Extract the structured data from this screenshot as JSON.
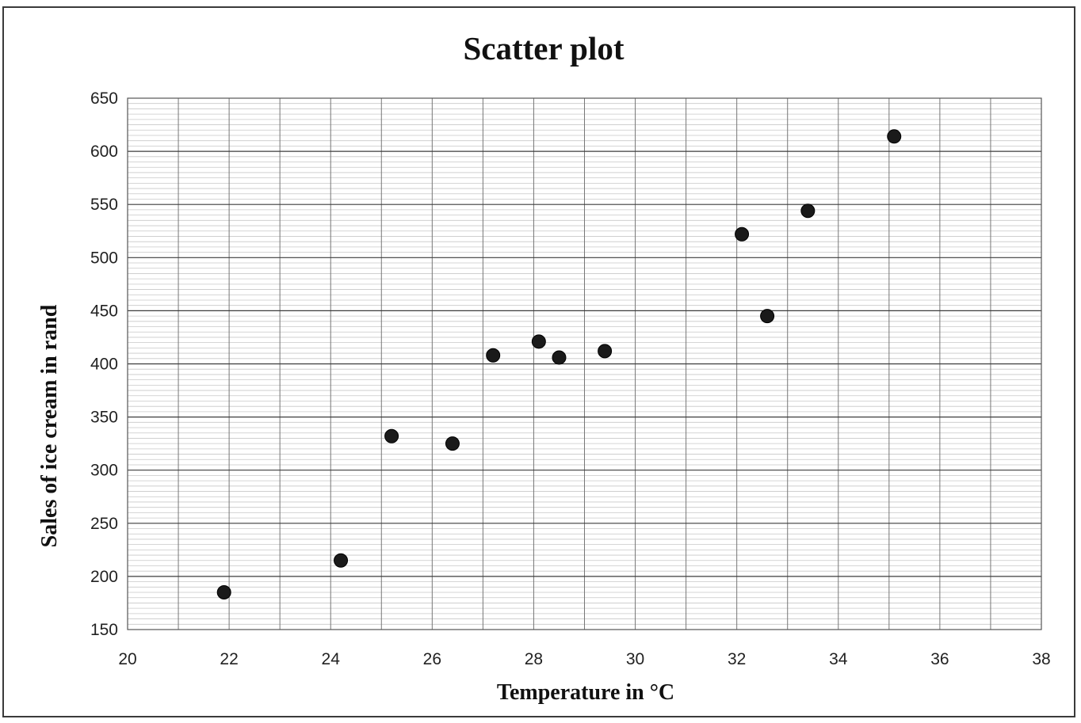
{
  "chart_data": {
    "type": "scatter",
    "title": "Scatter plot",
    "xlabel": "Temperature in  °C",
    "ylabel": "Sales of ice cream in rand",
    "xlim": [
      20,
      38
    ],
    "ylim": [
      150,
      650
    ],
    "x_ticks": [
      "20",
      "22",
      "24",
      "26",
      "28",
      "30",
      "32",
      "34",
      "36",
      "38"
    ],
    "y_ticks": [
      "150",
      "200",
      "250",
      "300",
      "350",
      "400",
      "450",
      "500",
      "550",
      "600",
      "650"
    ],
    "grid": true,
    "legend": "none",
    "marker_color": "#1a1a1a",
    "points": [
      {
        "x": 21.9,
        "y": 185
      },
      {
        "x": 24.2,
        "y": 215
      },
      {
        "x": 25.2,
        "y": 332
      },
      {
        "x": 26.4,
        "y": 325
      },
      {
        "x": 27.2,
        "y": 408
      },
      {
        "x": 28.1,
        "y": 421
      },
      {
        "x": 28.5,
        "y": 406
      },
      {
        "x": 29.4,
        "y": 412
      },
      {
        "x": 32.1,
        "y": 522
      },
      {
        "x": 32.6,
        "y": 445
      },
      {
        "x": 33.4,
        "y": 544
      },
      {
        "x": 35.1,
        "y": 614
      }
    ]
  }
}
